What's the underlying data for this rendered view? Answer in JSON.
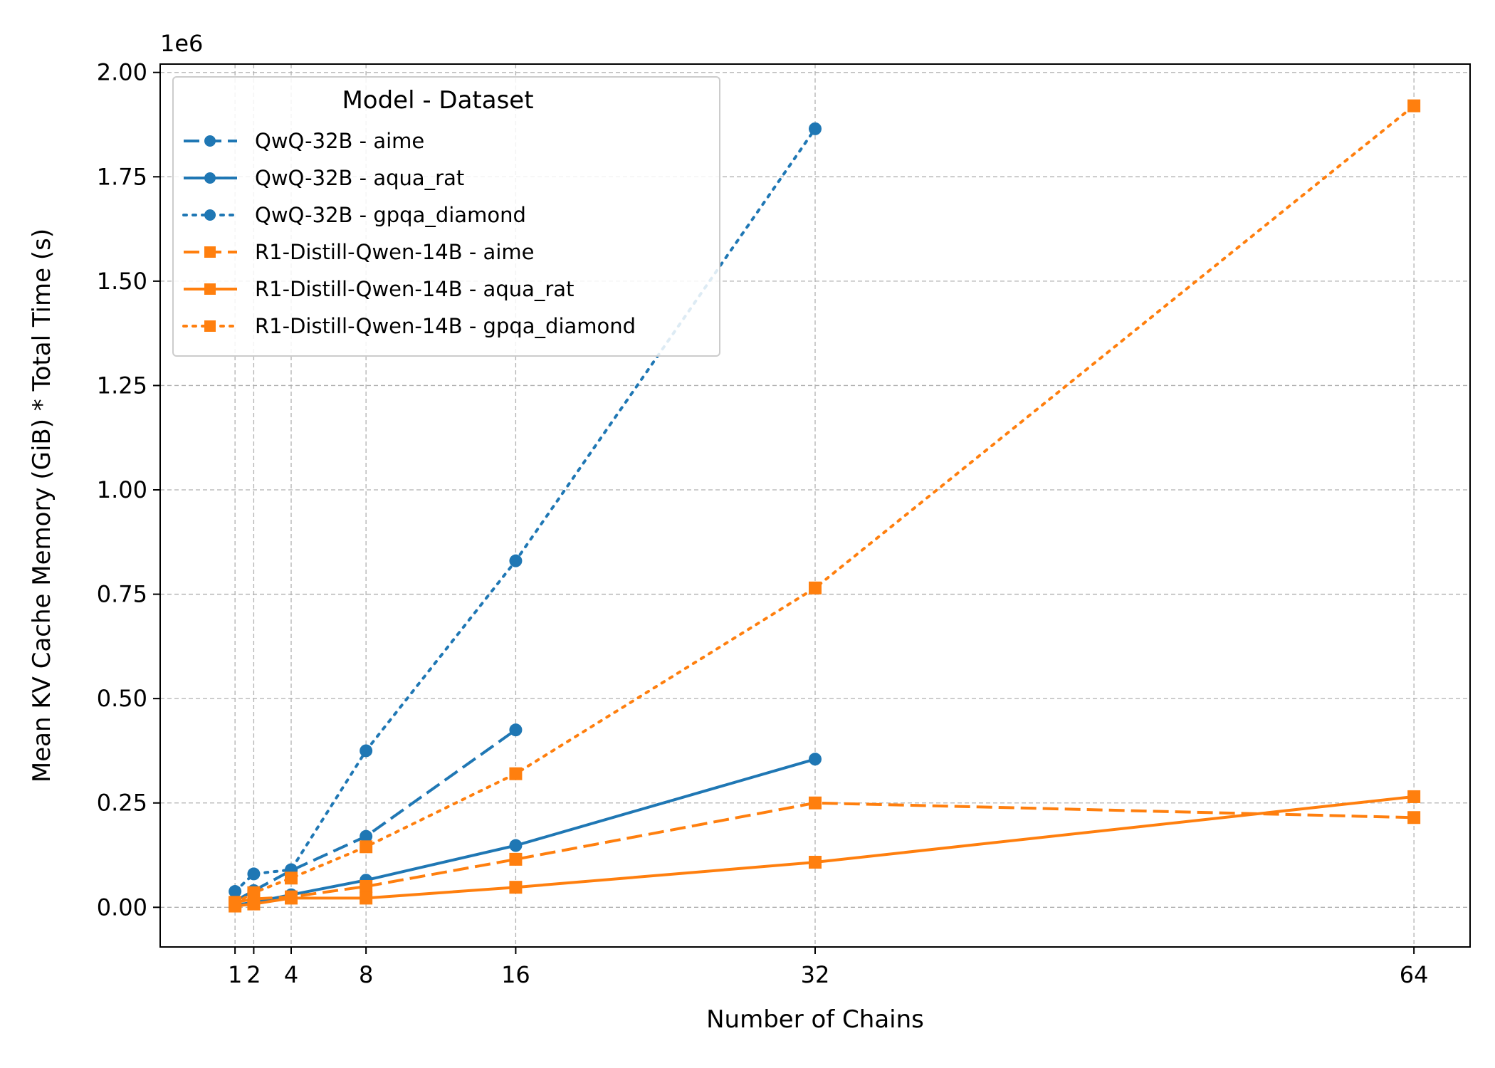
{
  "chart_data": {
    "type": "line",
    "xlabel": "Number of Chains",
    "ylabel": "Mean KV Cache Memory (GiB) * Total Time (s)",
    "offset_label": "1e6",
    "xlim": [
      -3,
      67
    ],
    "ylim": [
      -0.095,
      2.02
    ],
    "x_ticks": [
      1,
      2,
      4,
      8,
      16,
      32,
      64
    ],
    "x_tick_labels": [
      "1",
      "2",
      "4",
      "8",
      "16",
      "32",
      "64"
    ],
    "y_ticks": [
      0.0,
      0.25,
      0.5,
      0.75,
      1.0,
      1.25,
      1.5,
      1.75,
      2.0
    ],
    "y_tick_labels": [
      "0.00",
      "0.25",
      "0.50",
      "0.75",
      "1.00",
      "1.25",
      "1.50",
      "1.75",
      "2.00"
    ],
    "grid": true,
    "legend": {
      "title": "Model - Dataset",
      "position": "top-left"
    },
    "series": [
      {
        "name": "QwQ-32B - aime",
        "color": "#1f77b4",
        "dash": "dashed",
        "marker": "circle",
        "x": [
          1,
          2,
          4,
          8,
          16
        ],
        "y": [
          0.015,
          0.04,
          0.088,
          0.17,
          0.425
        ]
      },
      {
        "name": "QwQ-32B - aqua_rat",
        "color": "#1f77b4",
        "dash": "solid",
        "marker": "circle",
        "x": [
          1,
          2,
          4,
          8,
          16,
          32
        ],
        "y": [
          0.005,
          0.012,
          0.03,
          0.065,
          0.148,
          0.355
        ]
      },
      {
        "name": "QwQ-32B - gpqa_diamond",
        "color": "#1f77b4",
        "dash": "dotted",
        "marker": "circle",
        "x": [
          1,
          2,
          4,
          8,
          16,
          32
        ],
        "y": [
          0.038,
          0.08,
          0.09,
          0.375,
          0.83,
          1.865
        ]
      },
      {
        "name": "R1-Distill-Qwen-14B - aime",
        "color": "#ff7f0e",
        "dash": "dashed",
        "marker": "square",
        "x": [
          1,
          2,
          4,
          8,
          16,
          32,
          64
        ],
        "y": [
          0.012,
          0.02,
          0.025,
          0.05,
          0.115,
          0.25,
          0.215
        ]
      },
      {
        "name": "R1-Distill-Qwen-14B - aqua_rat",
        "color": "#ff7f0e",
        "dash": "solid",
        "marker": "square",
        "x": [
          1,
          2,
          4,
          8,
          16,
          32,
          64
        ],
        "y": [
          0.003,
          0.008,
          0.022,
          0.022,
          0.048,
          0.108,
          0.265
        ]
      },
      {
        "name": "R1-Distill-Qwen-14B - gpqa_diamond",
        "color": "#ff7f0e",
        "dash": "dotted",
        "marker": "square",
        "x": [
          1,
          2,
          4,
          8,
          16,
          32,
          64
        ],
        "y": [
          0.01,
          0.035,
          0.07,
          0.145,
          0.32,
          0.765,
          1.92
        ]
      }
    ]
  }
}
